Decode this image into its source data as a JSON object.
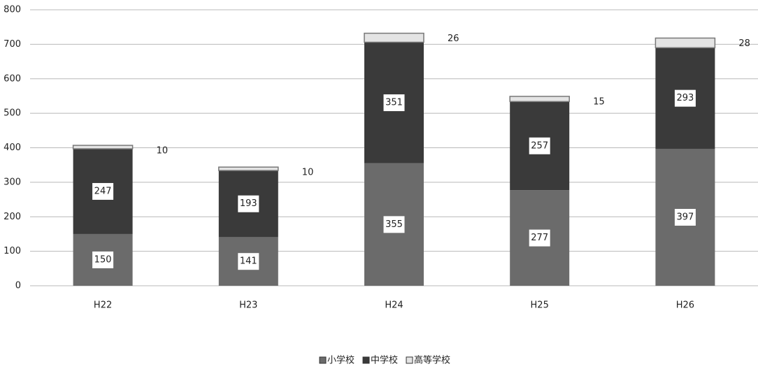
{
  "chart_data": {
    "type": "bar",
    "stacked": true,
    "categories": [
      "H22",
      "H23",
      "H24",
      "H25",
      "H26"
    ],
    "series": [
      {
        "name": "小学校",
        "color": "#6b6b6b",
        "values": [
          150,
          141,
          355,
          277,
          397
        ]
      },
      {
        "name": "中学校",
        "color": "#3a3a3a",
        "values": [
          247,
          193,
          351,
          257,
          293
        ]
      },
      {
        "name": "高等学校",
        "color": "#e4e4e4",
        "values": [
          10,
          10,
          26,
          15,
          28
        ]
      }
    ],
    "ylim": [
      0,
      800
    ],
    "yticks": [
      0,
      100,
      200,
      300,
      400,
      500,
      600,
      700,
      800
    ],
    "grid": true,
    "legend": "bottom"
  }
}
